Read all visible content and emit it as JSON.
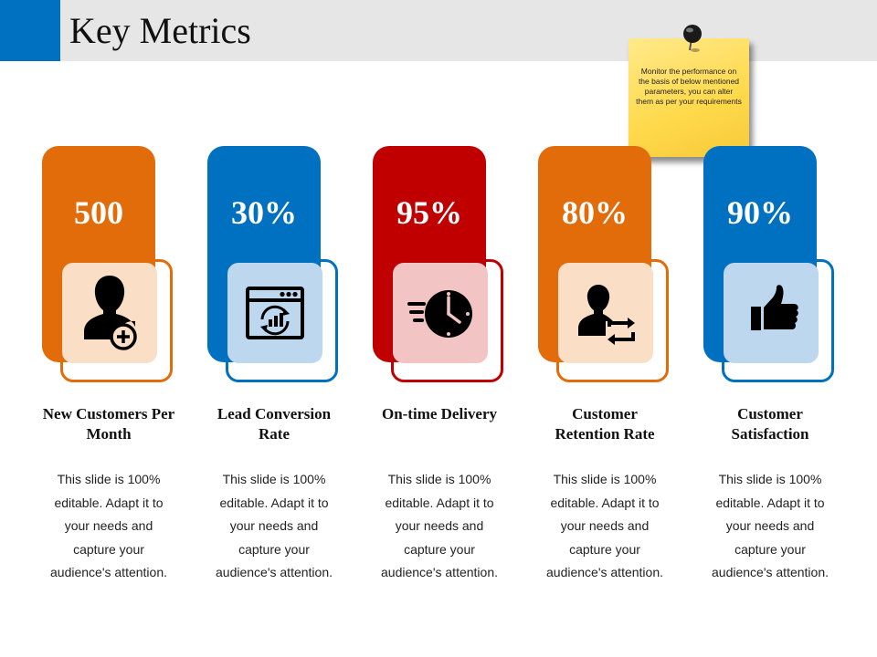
{
  "header": {
    "title": "Key Metrics"
  },
  "note": {
    "text": "Monitor the performance on the basis of below mentioned parameters, you can alter them as per your requirements"
  },
  "colors": {
    "orange": "#e36c0a",
    "blue": "#0070c0",
    "red": "#c00000",
    "title_bar": "#e6e6e6"
  },
  "cards": [
    {
      "value": "500",
      "label": "New Customers Per Month",
      "description": "This slide is 100% editable. Adapt it to your needs and capture your audience's attention.",
      "icon": "user-add-icon"
    },
    {
      "value": "30%",
      "label": "Lead Conversion Rate",
      "description": "This slide is 100% editable. Adapt it to your needs and capture your audience's attention.",
      "icon": "browser-chart-icon"
    },
    {
      "value": "95%",
      "label": "On-time Delivery",
      "description": "This slide is 100% editable. Adapt it to your needs and capture your audience's attention.",
      "icon": "fast-clock-icon"
    },
    {
      "value": "80%",
      "label": "Customer Retention Rate",
      "description": "This slide is 100% editable. Adapt it to your needs and capture your audience's attention.",
      "icon": "user-repeat-icon"
    },
    {
      "value": "90%",
      "label": "Customer Satisfaction",
      "description": "This slide is 100% editable. Adapt it to your needs and capture your audience's attention.",
      "icon": "thumbs-up-icon"
    }
  ]
}
